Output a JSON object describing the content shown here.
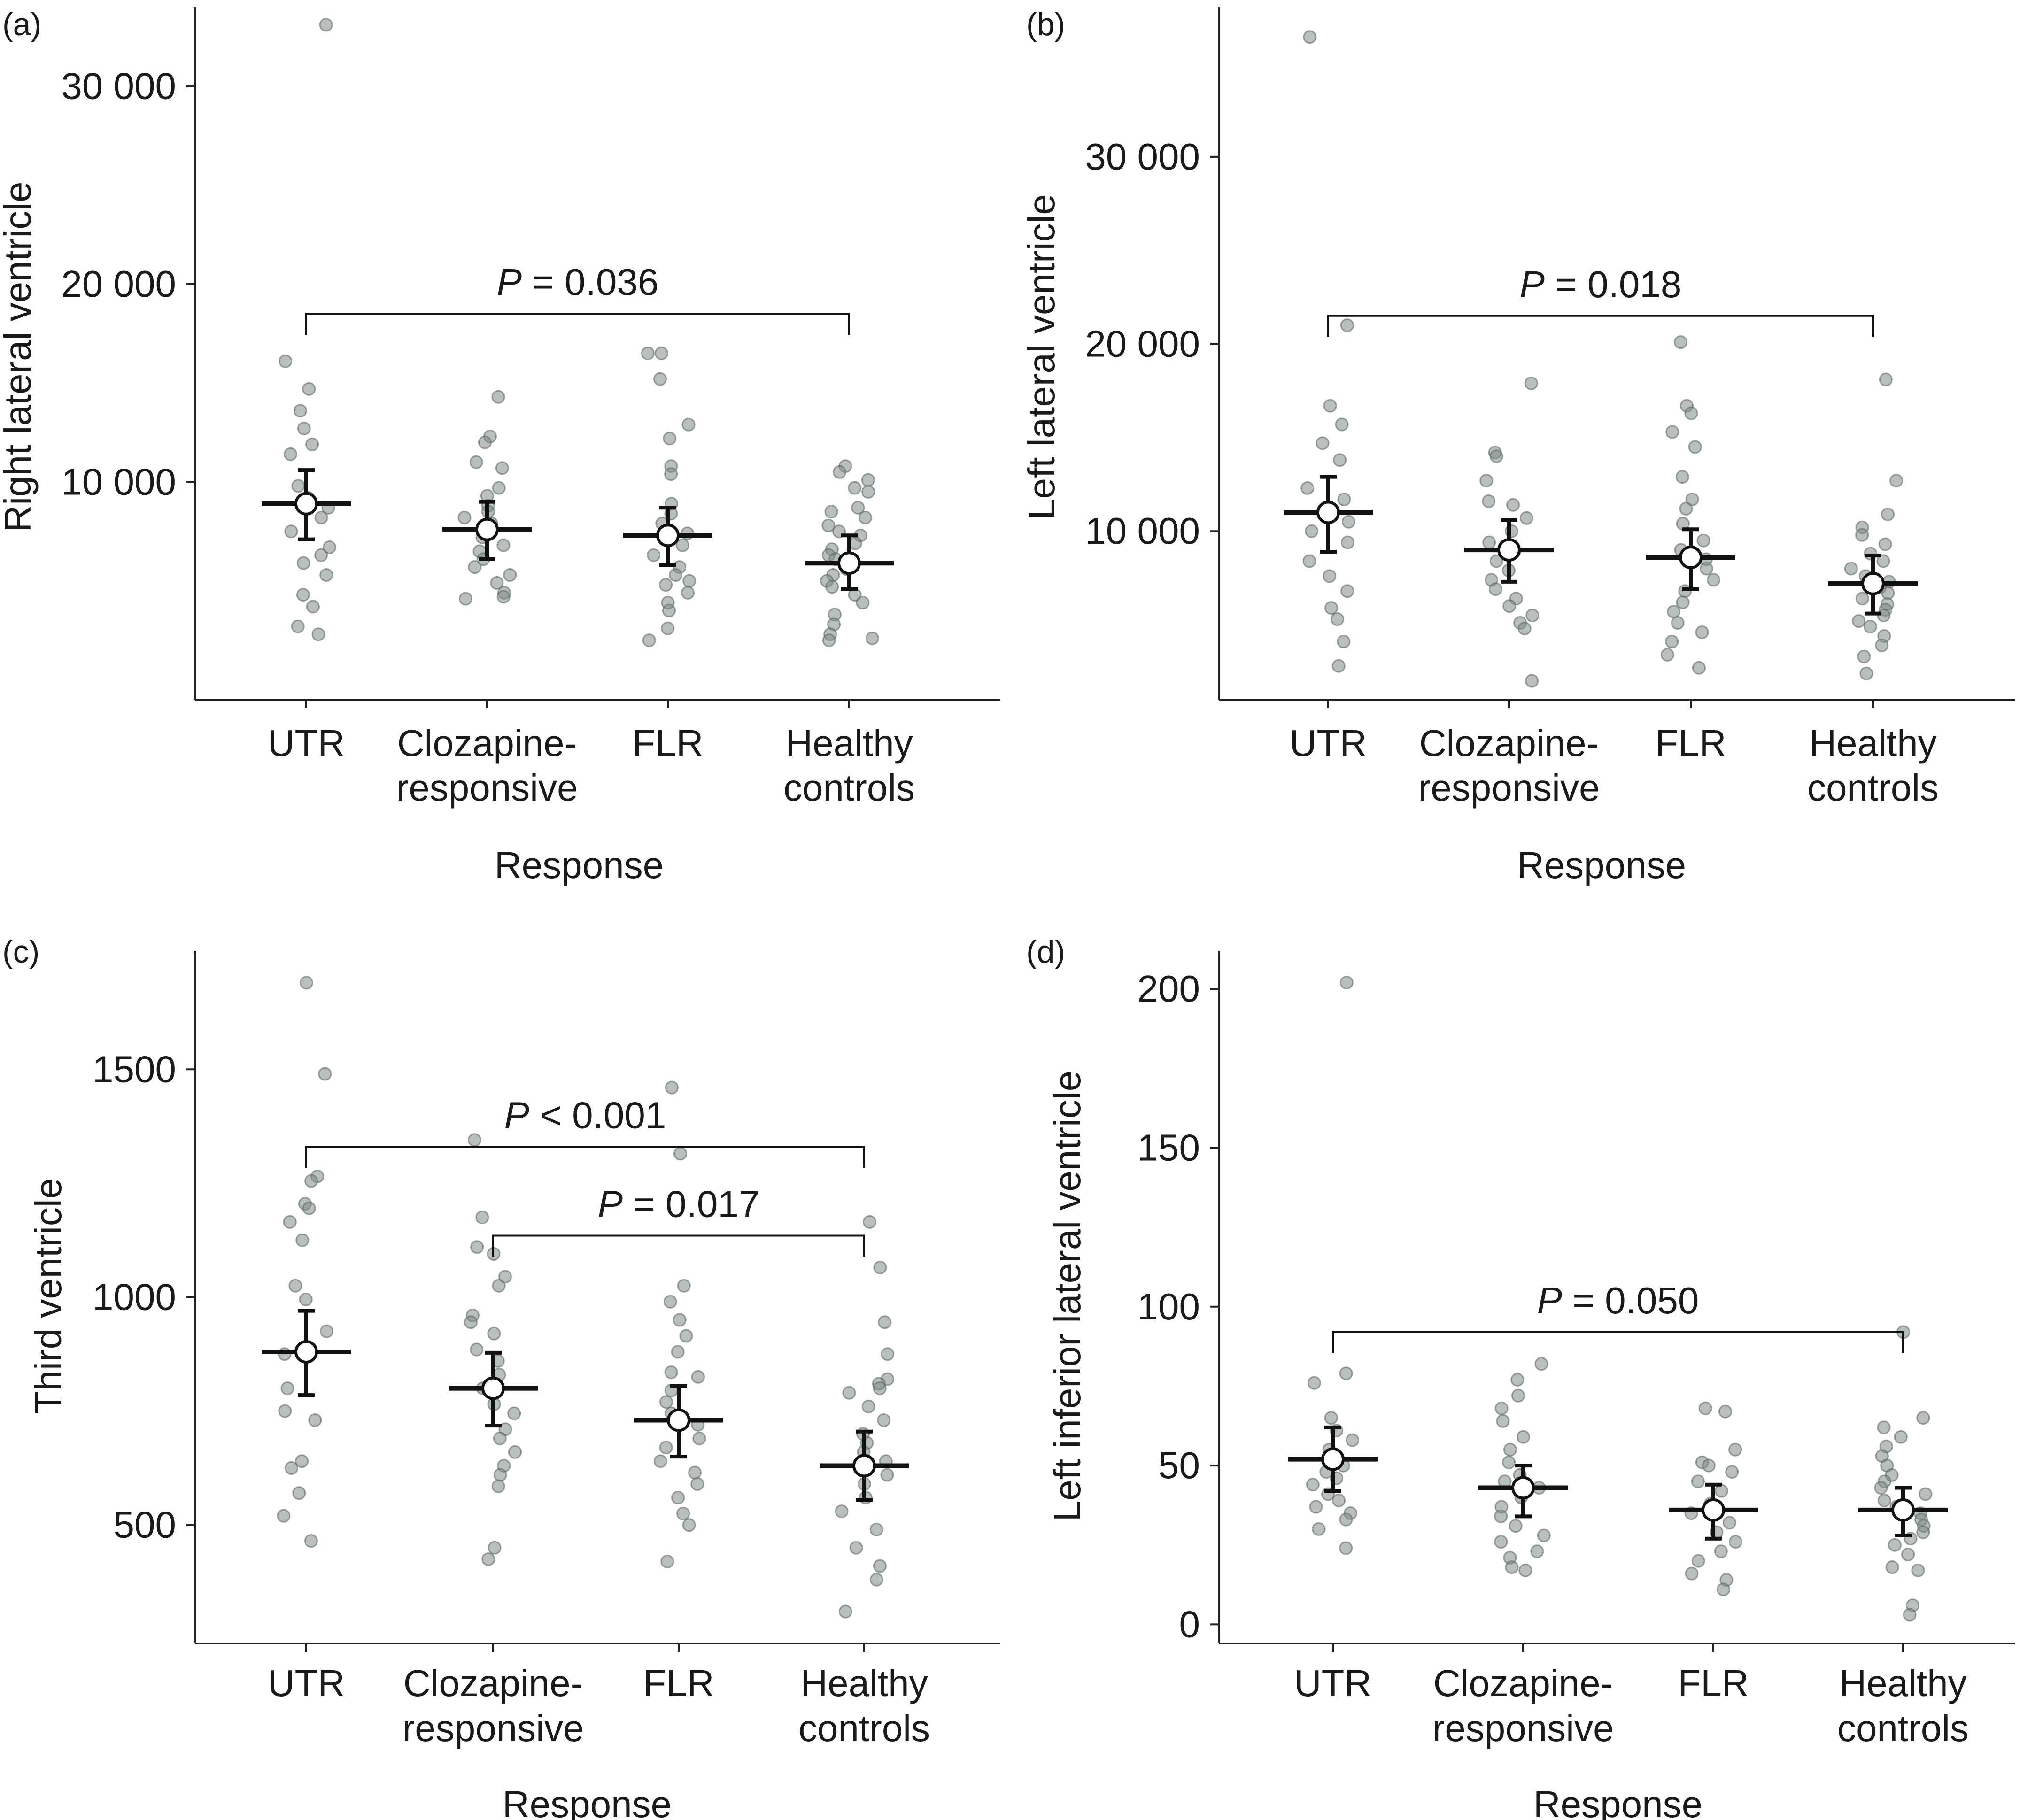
{
  "chart_data": [
    {
      "panel": "(a)",
      "type": "scatter",
      "xlabel": "Response",
      "ylabel": "Right lateral ventricle",
      "ylim": [
        -1000,
        34000
      ],
      "yticks": [
        {
          "v": 10000,
          "t": "10 000"
        },
        {
          "v": 20000,
          "t": "20 000"
        },
        {
          "v": 30000,
          "t": "30 000"
        }
      ],
      "categories": [
        {
          "line1": "UTR",
          "line2": ""
        },
        {
          "line1": "Clozapine-",
          "line2": "responsive"
        },
        {
          "line1": "FLR",
          "line2": ""
        },
        {
          "line1": "Healthy",
          "line2": "controls"
        }
      ],
      "summary": [
        {
          "mean": 8900,
          "lo": 7100,
          "hi": 10600
        },
        {
          "mean": 7600,
          "lo": 6100,
          "hi": 9000
        },
        {
          "mean": 7300,
          "lo": 5800,
          "hi": 8700
        },
        {
          "mean": 5900,
          "lo": 4600,
          "hi": 7300
        }
      ],
      "points": [
        [
          33100,
          16100,
          14700,
          13600,
          12700,
          11900,
          11400,
          9800,
          9200,
          8700,
          8200,
          7500,
          6700,
          6300,
          5900,
          5300,
          4300,
          3700,
          2700,
          2300
        ],
        [
          14300,
          12300,
          12000,
          11000,
          10700,
          9700,
          9300,
          8800,
          8500,
          8200,
          7900,
          7600,
          7200,
          6800,
          6500,
          6100,
          5700,
          5300,
          4900,
          4400,
          4200,
          4100
        ],
        [
          16500,
          16500,
          15200,
          12900,
          12200,
          10800,
          10400,
          8900,
          8400,
          7900,
          7400,
          6800,
          6300,
          5700,
          5300,
          5000,
          4800,
          4400,
          3900,
          3500,
          2600,
          2000
        ],
        [
          10800,
          10500,
          10100,
          9700,
          9500,
          8700,
          8500,
          8200,
          7800,
          7500,
          7300,
          6900,
          6600,
          6300,
          6100,
          5900,
          5600,
          5300,
          5000,
          4700,
          4300,
          3900,
          3300,
          2800,
          2300,
          2100,
          2000
        ]
      ],
      "brackets": [
        {
          "from": 0,
          "to": 3,
          "y": 18500,
          "label": "P = 0.036"
        }
      ]
    },
    {
      "panel": "(b)",
      "type": "scatter",
      "xlabel": "Response",
      "ylabel": "Left lateral ventricle",
      "ylim": [
        1000,
        38000
      ],
      "yticks": [
        {
          "v": 10000,
          "t": "10 000"
        },
        {
          "v": 20000,
          "t": "20 000"
        },
        {
          "v": 30000,
          "t": "30 000"
        }
      ],
      "categories": [
        {
          "line1": "UTR",
          "line2": ""
        },
        {
          "line1": "Clozapine-",
          "line2": "responsive"
        },
        {
          "line1": "FLR",
          "line2": ""
        },
        {
          "line1": "Healthy",
          "line2": "controls"
        }
      ],
      "summary": [
        {
          "mean": 11000,
          "lo": 8900,
          "hi": 12900
        },
        {
          "mean": 9000,
          "lo": 7300,
          "hi": 10600
        },
        {
          "mean": 8600,
          "lo": 6900,
          "hi": 10100
        },
        {
          "mean": 7200,
          "lo": 5600,
          "hi": 8700
        }
      ],
      "points": [
        [
          36400,
          21000,
          16700,
          15700,
          14700,
          13800,
          12300,
          11700,
          10500,
          10000,
          9400,
          8400,
          7600,
          6800,
          5900,
          5300,
          4100,
          2800
        ],
        [
          17900,
          14200,
          14000,
          12700,
          11600,
          11400,
          10700,
          10000,
          9400,
          8900,
          8400,
          7900,
          7400,
          6900,
          6400,
          6000,
          5500,
          5100,
          4800,
          2000
        ],
        [
          20100,
          16700,
          16300,
          15300,
          14500,
          12900,
          11700,
          11200,
          10400,
          9500,
          9000,
          8500,
          8000,
          7400,
          6800,
          6200,
          5700,
          5100,
          4600,
          4100,
          3400,
          2700
        ],
        [
          18100,
          12700,
          10900,
          10200,
          9800,
          9300,
          8800,
          8400,
          8000,
          7600,
          7300,
          7000,
          6700,
          6400,
          6100,
          5800,
          5500,
          5200,
          4900,
          4400,
          3900,
          3300,
          2400
        ]
      ],
      "brackets": [
        {
          "from": 0,
          "to": 3,
          "y": 21500,
          "label": "P = 0.018"
        }
      ]
    },
    {
      "panel": "(c)",
      "type": "scatter",
      "xlabel": "Response",
      "ylabel": "Third ventricle",
      "ylim": [
        240,
        1760
      ],
      "yticks": [
        {
          "v": 500,
          "t": "500"
        },
        {
          "v": 1000,
          "t": "1000"
        },
        {
          "v": 1500,
          "t": "1500"
        }
      ],
      "categories": [
        {
          "line1": "UTR",
          "line2": ""
        },
        {
          "line1": "Clozapine-",
          "line2": "responsive"
        },
        {
          "line1": "FLR",
          "line2": ""
        },
        {
          "line1": "Healthy",
          "line2": "controls"
        }
      ],
      "summary": [
        {
          "mean": 880,
          "lo": 785,
          "hi": 970
        },
        {
          "mean": 800,
          "lo": 718,
          "hi": 878
        },
        {
          "mean": 730,
          "lo": 650,
          "hi": 805
        },
        {
          "mean": 630,
          "lo": 555,
          "hi": 705
        }
      ],
      "points": [
        [
          1690,
          1490,
          1265,
          1255,
          1205,
          1195,
          1165,
          1125,
          1025,
          995,
          925,
          875,
          800,
          750,
          730,
          640,
          625,
          570,
          520,
          465
        ],
        [
          1345,
          1175,
          1110,
          1095,
          1045,
          1025,
          960,
          945,
          920,
          885,
          860,
          830,
          800,
          765,
          745,
          710,
          690,
          660,
          630,
          610,
          585,
          450,
          425
        ],
        [
          1460,
          1315,
          1025,
          990,
          950,
          915,
          880,
          835,
          825,
          795,
          770,
          745,
          720,
          690,
          670,
          640,
          615,
          590,
          560,
          525,
          500,
          420
        ],
        [
          1165,
          1065,
          945,
          875,
          820,
          810,
          800,
          790,
          760,
          730,
          700,
          680,
          660,
          640,
          610,
          590,
          560,
          530,
          490,
          450,
          410,
          380,
          310
        ]
      ],
      "brackets": [
        {
          "from": 0,
          "to": 3,
          "y": 1330,
          "label": "P < 0.001"
        },
        {
          "from": 1,
          "to": 3,
          "y": 1135,
          "label": "P = 0.017"
        }
      ]
    },
    {
      "panel": "(d)",
      "type": "scatter",
      "xlabel": "Response",
      "ylabel": "Left inferior lateral ventricle",
      "ylim": [
        -6,
        212
      ],
      "yticks": [
        {
          "v": 0,
          "t": "0"
        },
        {
          "v": 50,
          "t": "50"
        },
        {
          "v": 100,
          "t": "100"
        },
        {
          "v": 150,
          "t": "150"
        },
        {
          "v": 200,
          "t": "200"
        }
      ],
      "categories": [
        {
          "line1": "UTR",
          "line2": ""
        },
        {
          "line1": "Clozapine-",
          "line2": "responsive"
        },
        {
          "line1": "FLR",
          "line2": ""
        },
        {
          "line1": "Healthy",
          "line2": "controls"
        }
      ],
      "summary": [
        {
          "mean": 52,
          "lo": 42,
          "hi": 62
        },
        {
          "mean": 43,
          "lo": 34,
          "hi": 50
        },
        {
          "mean": 36,
          "lo": 27,
          "hi": 44
        },
        {
          "mean": 36,
          "lo": 28,
          "hi": 43
        }
      ],
      "points": [
        [
          202,
          79,
          76,
          65,
          61,
          58,
          55,
          52,
          50,
          48,
          46,
          44,
          41,
          39,
          37,
          35,
          33,
          30,
          24
        ],
        [
          82,
          77,
          72,
          68,
          64,
          59,
          55,
          51,
          47,
          45,
          43,
          40,
          37,
          34,
          31,
          28,
          26,
          23,
          21,
          18,
          17
        ],
        [
          68,
          67,
          55,
          51,
          50,
          48,
          45,
          42,
          38,
          35,
          32,
          29,
          26,
          23,
          20,
          16,
          14,
          11
        ],
        [
          92,
          65,
          62,
          59,
          56,
          53,
          50,
          47,
          45,
          43,
          41,
          39,
          37,
          35,
          33,
          31,
          29,
          27,
          25,
          22,
          18,
          17,
          6,
          3
        ]
      ],
      "brackets": [
        {
          "from": 0,
          "to": 3,
          "y": 92,
          "label": "P = 0.050"
        }
      ]
    }
  ]
}
